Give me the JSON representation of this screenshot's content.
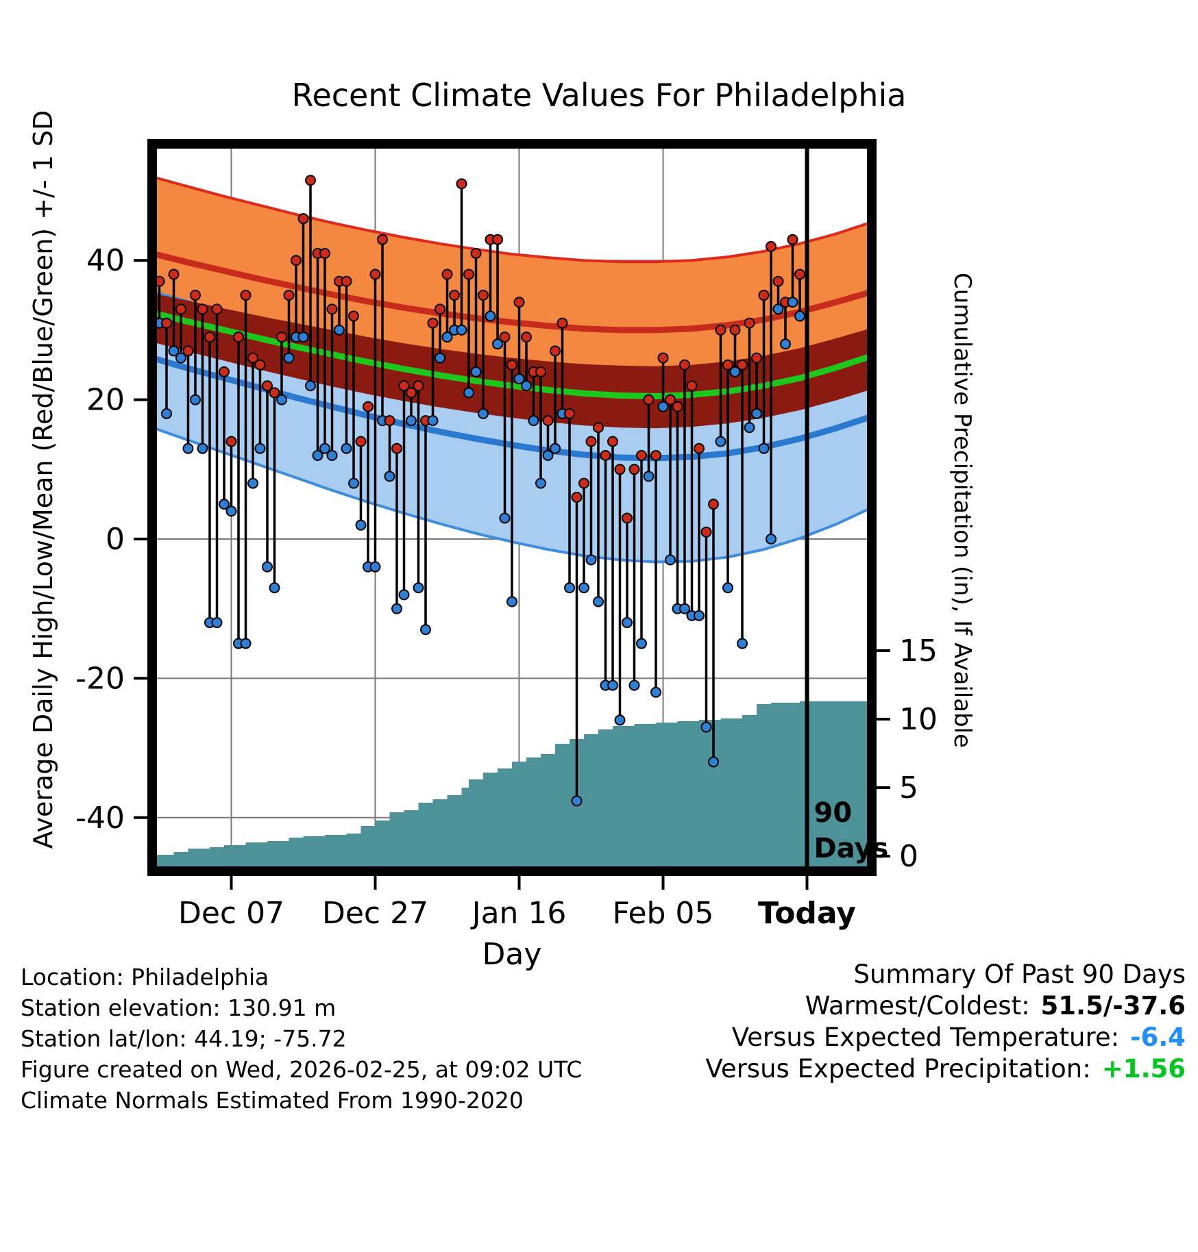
{
  "title": "Recent Climate Values For Philadelphia",
  "axes": {
    "left_label": "Average Daily High/Low/Mean (Red/Blue/Green) +/- 1 SD",
    "right_label": "Cumulative Precipitation (in), If Available",
    "x_label": "Day",
    "left_ticks": [
      40,
      20,
      0,
      -20,
      -40
    ],
    "right_ticks": [
      15,
      10,
      5,
      0
    ],
    "x_ticks": [
      {
        "t": 11,
        "label": "Dec 07",
        "bold": false
      },
      {
        "t": 31,
        "label": "Dec 27",
        "bold": false
      },
      {
        "t": 51,
        "label": "Jan 16",
        "bold": false
      },
      {
        "t": 71,
        "label": "Feb 05",
        "bold": false
      },
      {
        "t": 91,
        "label": "Today",
        "bold": true
      }
    ]
  },
  "annotations": {
    "ninety_days_line_t": 91,
    "ninety_days_label": [
      "90",
      "Days"
    ]
  },
  "footer_left": [
    "Location: Philadelphia",
    "Station elevation: 130.91 m",
    "Station lat/lon: 44.19; -75.72",
    "Figure created on Wed, 2026-02-25, at 09:02 UTC",
    "Climate Normals Estimated From 1990-2020"
  ],
  "summary": {
    "heading": "Summary Of Past 90 Days",
    "rows": [
      {
        "label": "Warmest/Coldest:",
        "value": "51.5/-37.6",
        "color": "#000000"
      },
      {
        "label": "Versus Expected Temperature:",
        "value": "-6.4",
        "color": "#1E8FFF"
      },
      {
        "label": "Versus Expected Precipitation:",
        "value": "+1.56",
        "color": "#00C81E"
      }
    ]
  },
  "colors": {
    "orange_band": "#F58840",
    "red_edge": "#DD2A1C",
    "red_line": "#C62B1B",
    "maroon_band": "#8B1A10",
    "green_line": "#1DC81D",
    "lightblue_band": "#A8CDF0",
    "blue_edge": "#3D8EE0",
    "blue_line": "#2979D0",
    "teal_area": "#4D9298",
    "grid": "#7A7A7A",
    "dot_red": "#CE2A1A",
    "dot_blue": "#2E7FD6"
  },
  "chart_data": {
    "type": "line",
    "title": "Recent Climate Values For Philadelphia",
    "xlabel": "Day",
    "ylabel_left": "Average Daily High/Low/Mean (Red/Blue/Green) +/- 1 SD",
    "ylabel_right": "Cumulative Precipitation (in), If Available",
    "temp_axis_ticks": [
      40,
      20,
      0,
      -20,
      -40
    ],
    "precip_axis_ticks": [
      15,
      10,
      5,
      0
    ],
    "x_range_days": [
      0,
      100
    ],
    "today_t": 91,
    "normals_t": [
      0,
      5,
      10,
      15,
      20,
      25,
      30,
      35,
      40,
      45,
      50,
      55,
      60,
      65,
      70,
      75,
      80,
      85,
      90,
      95,
      100
    ],
    "normals": {
      "high_upper": [
        52.0,
        50.6,
        49.2,
        47.9,
        46.6,
        45.4,
        44.3,
        43.3,
        42.4,
        41.6,
        40.9,
        40.4,
        40.0,
        39.8,
        39.8,
        40.0,
        40.5,
        41.3,
        42.4,
        43.8,
        45.5
      ],
      "high_mean": [
        41.0,
        39.7,
        38.5,
        37.3,
        36.2,
        35.1,
        34.1,
        33.2,
        32.4,
        31.7,
        31.1,
        30.6,
        30.2,
        30.0,
        30.0,
        30.2,
        30.7,
        31.5,
        32.6,
        34.0,
        35.5
      ],
      "high_lower": [
        30.0,
        28.8,
        27.7,
        26.7,
        25.7,
        24.8,
        23.9,
        23.1,
        22.4,
        21.8,
        21.3,
        20.9,
        20.6,
        20.4,
        20.4,
        20.6,
        21.1,
        21.8,
        22.8,
        24.1,
        25.5
      ],
      "mean_upper": [
        35.3,
        34.2,
        33.1,
        32.0,
        31.0,
        30.0,
        29.0,
        28.1,
        27.3,
        26.6,
        26.0,
        25.5,
        25.1,
        24.9,
        24.8,
        25.0,
        25.5,
        26.3,
        27.4,
        28.8,
        30.3
      ],
      "mean": [
        32.5,
        31.2,
        30.0,
        28.8,
        27.6,
        26.5,
        25.4,
        24.4,
        23.5,
        22.7,
        22.0,
        21.4,
        20.9,
        20.6,
        20.5,
        20.7,
        21.2,
        22.0,
        23.1,
        24.6,
        26.3
      ],
      "mean_lower": [
        28.3,
        26.9,
        25.6,
        24.3,
        23.1,
        21.9,
        20.8,
        19.8,
        18.9,
        18.1,
        17.4,
        16.8,
        16.3,
        16.0,
        15.9,
        16.1,
        16.6,
        17.4,
        18.5,
        19.9,
        21.5
      ],
      "low_upper": [
        35.5,
        34.1,
        32.7,
        31.3,
        30.0,
        28.7,
        27.4,
        26.2,
        25.1,
        24.1,
        23.2,
        22.4,
        21.8,
        21.4,
        21.3,
        21.5,
        22.0,
        22.9,
        24.1,
        25.6,
        27.3
      ],
      "low_mean": [
        26.0,
        24.5,
        23.1,
        21.7,
        20.3,
        19.0,
        17.7,
        16.5,
        15.4,
        14.4,
        13.5,
        12.7,
        12.1,
        11.7,
        11.6,
        11.8,
        12.3,
        13.2,
        14.4,
        15.9,
        17.6
      ],
      "low_lower": [
        16.0,
        14.2,
        12.4,
        10.6,
        8.8,
        7.0,
        5.3,
        3.7,
        2.2,
        0.8,
        -0.4,
        -1.5,
        -2.4,
        -3.0,
        -3.3,
        -3.2,
        -2.6,
        -1.5,
        0.1,
        2.1,
        4.5
      ]
    },
    "daily": {
      "t_start": 1,
      "highs": [
        37,
        31,
        38,
        33,
        27,
        35,
        33,
        29,
        33,
        24,
        14,
        29,
        35,
        26,
        25,
        22,
        21,
        29,
        35,
        40,
        46,
        51.5,
        41,
        41,
        33,
        37,
        37,
        32,
        14,
        19,
        38,
        43,
        17,
        13,
        22,
        21,
        22,
        17,
        31,
        33,
        38,
        35,
        51,
        38,
        41,
        35,
        43,
        43,
        29,
        25,
        34,
        29,
        24,
        24,
        17,
        27,
        31,
        18,
        6,
        8,
        14,
        16,
        12,
        14,
        10,
        3,
        10,
        12,
        20,
        12,
        26,
        20,
        19,
        25,
        22,
        13,
        1,
        5,
        30,
        25,
        30,
        25,
        31,
        26,
        35,
        42,
        37,
        34,
        43,
        38
      ],
      "lows": [
        31,
        18,
        27,
        26,
        13,
        20,
        13,
        -12,
        -12,
        5,
        4,
        -15,
        -15,
        8,
        13,
        -4,
        -7,
        20,
        26,
        29,
        29,
        22,
        12,
        13,
        12,
        30,
        13,
        8,
        2,
        -4,
        -4,
        17,
        9,
        -10,
        -8,
        17,
        -7,
        -13,
        17,
        26,
        29,
        30,
        30,
        21,
        24,
        18,
        32,
        28,
        3,
        -9,
        23,
        22,
        17,
        8,
        12,
        13,
        18,
        -7,
        -37.6,
        -7,
        -3,
        -9,
        -21,
        -21,
        -26,
        -12,
        -21,
        -15,
        9,
        -22,
        19,
        -3,
        -10,
        -10,
        -11,
        -11,
        -27,
        -32,
        14,
        -7,
        24,
        -15,
        16,
        18,
        13,
        0,
        33,
        28,
        34,
        32
      ]
    },
    "cum_precip": [
      [
        0,
        0.1
      ],
      [
        3,
        0.3
      ],
      [
        5,
        0.55
      ],
      [
        8,
        0.65
      ],
      [
        10,
        0.8
      ],
      [
        13,
        1.0
      ],
      [
        16,
        1.1
      ],
      [
        19,
        1.35
      ],
      [
        21,
        1.45
      ],
      [
        24,
        1.55
      ],
      [
        27,
        1.65
      ],
      [
        29,
        2.2
      ],
      [
        31,
        2.6
      ],
      [
        33,
        3.2
      ],
      [
        35,
        3.35
      ],
      [
        37,
        3.9
      ],
      [
        39,
        4.15
      ],
      [
        41,
        4.45
      ],
      [
        43,
        5.0
      ],
      [
        44,
        5.6
      ],
      [
        46,
        6.1
      ],
      [
        48,
        6.4
      ],
      [
        50,
        6.9
      ],
      [
        52,
        7.2
      ],
      [
        54,
        7.45
      ],
      [
        56,
        8.2
      ],
      [
        58,
        8.55
      ],
      [
        60,
        8.9
      ],
      [
        62,
        9.25
      ],
      [
        64,
        9.5
      ],
      [
        67,
        9.65
      ],
      [
        70,
        9.75
      ],
      [
        73,
        9.85
      ],
      [
        76,
        9.95
      ],
      [
        79,
        10.05
      ],
      [
        82,
        10.3
      ],
      [
        84,
        11.1
      ],
      [
        86,
        11.2
      ],
      [
        90,
        11.3
      ],
      [
        100,
        11.3
      ]
    ],
    "summary": {
      "warmest": 51.5,
      "coldest": -37.6,
      "versus_expected_temperature": -6.4,
      "versus_expected_precipitation": 1.56
    }
  }
}
